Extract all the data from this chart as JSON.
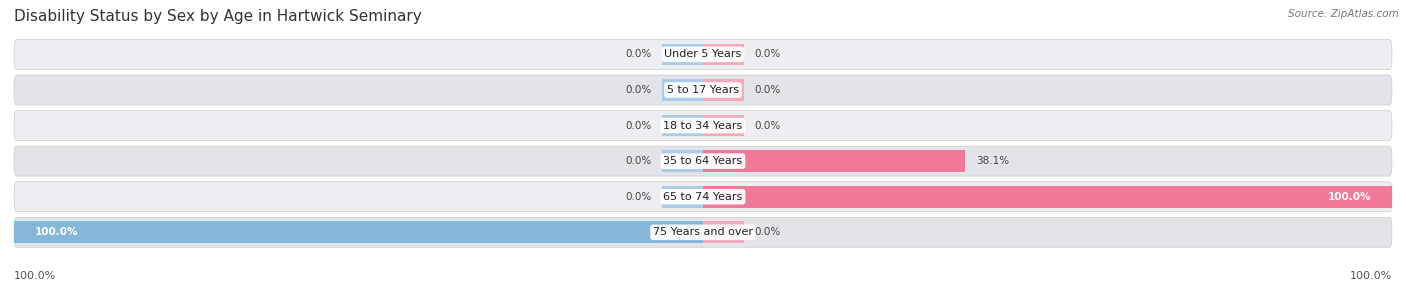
{
  "title": "Disability Status by Sex by Age in Hartwick Seminary",
  "source": "Source: ZipAtlas.com",
  "categories": [
    "Under 5 Years",
    "5 to 17 Years",
    "18 to 34 Years",
    "35 to 64 Years",
    "65 to 74 Years",
    "75 Years and over"
  ],
  "male_values": [
    0.0,
    0.0,
    0.0,
    0.0,
    0.0,
    100.0
  ],
  "female_values": [
    0.0,
    0.0,
    0.0,
    38.1,
    100.0,
    0.0
  ],
  "male_color": "#85b7d9",
  "female_color": "#f07898",
  "male_stub_color": "#aacce8",
  "female_stub_color": "#f4aabb",
  "row_bg_color_odd": "#f0f0f4",
  "row_bg_color_even": "#e8e8ee",
  "max_val": 100.0,
  "stub_size": 6.0,
  "figsize": [
    14.06,
    3.05
  ],
  "dpi": 100
}
